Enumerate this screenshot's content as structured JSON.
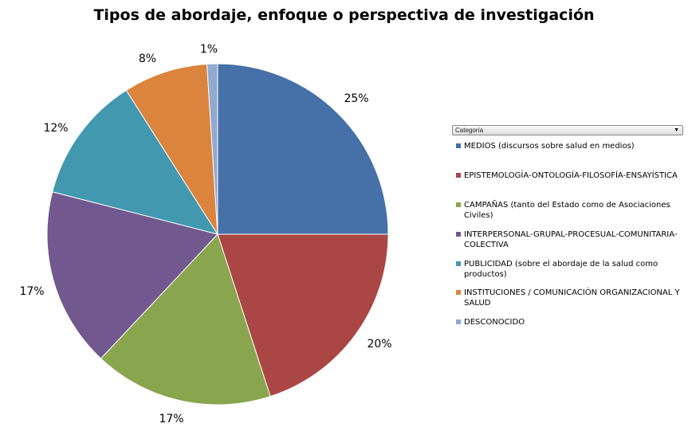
{
  "chart_data": {
    "type": "pie",
    "title": "Tipos de abordaje,  enfoque o perspectiva de investigación",
    "legend_title": "Categoría",
    "legend_placement": "right",
    "slices": [
      {
        "name": "MEDIOS (discursos sobre salud en medios)",
        "value": 25,
        "label": "25%",
        "color": "#4670A8"
      },
      {
        "name": "EPISTEMOLOGÍA-ONTOLOGÍA-FILOSOFÍA-ENSAYÍSTICA",
        "value": 20,
        "label": "20%",
        "color": "#AA4644"
      },
      {
        "name": "CAMPAÑAS (tanto del Estado como de Asociaciones Civiles)",
        "value": 17,
        "label": "17%",
        "color": "#89A54E"
      },
      {
        "name": "INTERPERSONAL-GRUPAL-PROCESUAL-COMUNITARIA-COLECTIVA",
        "value": 17,
        "label": "17%",
        "color": "#71588F"
      },
      {
        "name": "PUBLICIDAD (sobre el abordaje de la salud como productos)",
        "value": 12,
        "label": "12%",
        "color": "#4198AF"
      },
      {
        "name": "INSTITUCIONES / COMUNICACIÓN ORGANIZACIONAL Y SALUD",
        "value": 8,
        "label": "8%",
        "color": "#DB843D"
      },
      {
        "name": "DESCONOCIDO",
        "value": 1,
        "label": "1%",
        "color": "#93A9CF"
      }
    ]
  }
}
